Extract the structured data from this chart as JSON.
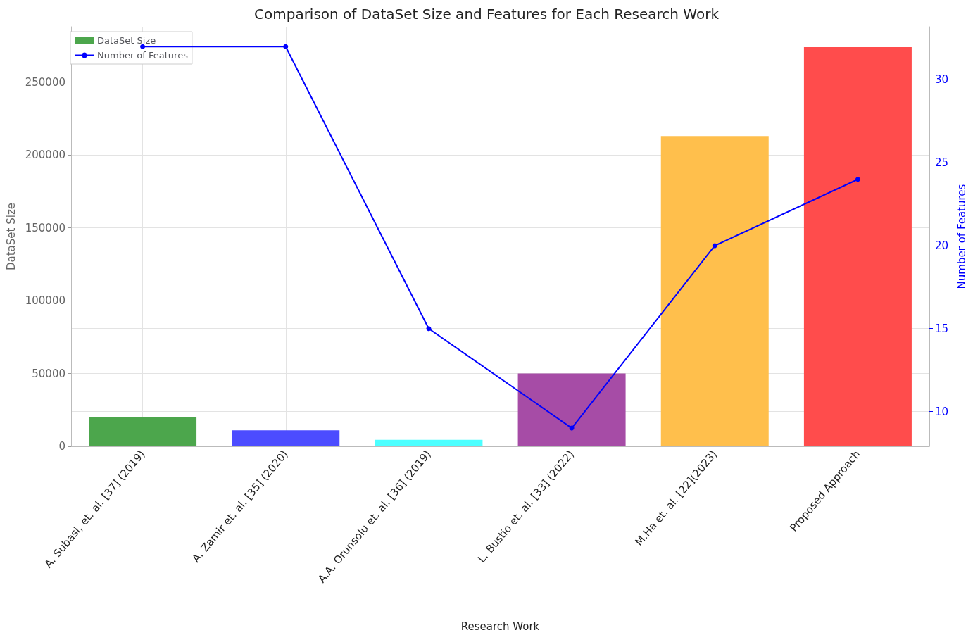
{
  "chart_data": {
    "type": "bar",
    "title": "Comparison of DataSet Size and Features for Each Research Work",
    "xlabel": "Research Work",
    "ylabel": "DataSet Size",
    "y2label": "Number of Features",
    "categories": [
      "A. Subasi, et. al. [37] (2019)",
      "A. Zamir et. al. [35] (2020)",
      "A.A. Orunsolu et. al. [36] (2019)",
      "L. Bustio et. al. [33] (2022)",
      "M.Ha et. al. [22](2023)",
      "Proposed Approach"
    ],
    "series": [
      {
        "name": "DataSet Size",
        "color": "#4ca64c",
        "colors": [
          "#4ca64c",
          "#4c4cff",
          "#4cffff",
          "#a64ca6",
          "#ffbf4c",
          "#ff4c4c"
        ],
        "values": [
          20000,
          11000,
          4500,
          50000,
          213000,
          274000
        ]
      },
      {
        "name": "Number of Features",
        "type": "line",
        "axis": "y2",
        "color": "#0000ff",
        "values": [
          32,
          32,
          15,
          9,
          20,
          24
        ]
      }
    ],
    "ylim": [
      0,
      288000
    ],
    "yticks": [
      0,
      50000,
      100000,
      150000,
      200000,
      250000
    ],
    "y2lim": [
      7.9,
      33.2
    ],
    "y2ticks": [
      10,
      15,
      20,
      25,
      30
    ],
    "grid": true,
    "legend": "top left",
    "marker": "circle",
    "line_style": "solid"
  }
}
